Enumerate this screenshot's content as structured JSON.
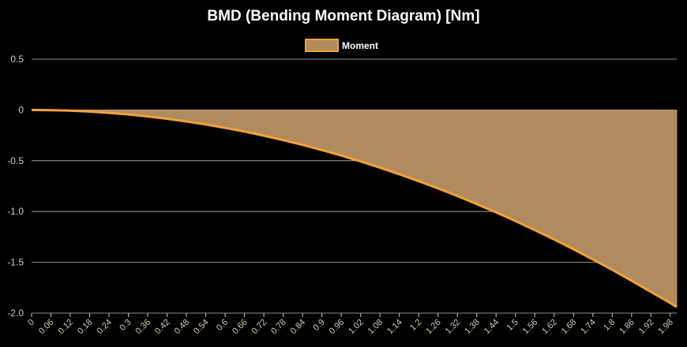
{
  "chart_data": {
    "type": "area",
    "title": "BMD (Bending Moment Diagram) [Nm]",
    "legend": {
      "position": "top",
      "entries": [
        "Moment"
      ]
    },
    "xlabel": "",
    "ylabel": "",
    "ylim": [
      -2.0,
      0.5
    ],
    "yticks": [
      "0.5",
      "0",
      "-0.5",
      "-1.0",
      "-1.5",
      "-2.0"
    ],
    "xlim": [
      0,
      2.0
    ],
    "xticks": [
      "0",
      "0.06",
      "0.12",
      "0.18",
      "0.24",
      "0.3",
      "0.36",
      "0.42",
      "0.48",
      "0.54",
      "0.6",
      "0.66",
      "0.72",
      "0.78",
      "0.84",
      "0.9",
      "0.96",
      "1.02",
      "1.08",
      "1.14",
      "1.2",
      "1.26",
      "1.32",
      "1.38",
      "1.44",
      "1.5",
      "1.56",
      "1.62",
      "1.68",
      "1.74",
      "1.8",
      "1.86",
      "1.92",
      "1.98"
    ],
    "grid": true,
    "colors": {
      "line": "#f5a13a",
      "fill": "#b08b5e",
      "background": "#000000"
    },
    "series": [
      {
        "name": "Moment",
        "x": [
          0,
          0.06,
          0.12,
          0.18,
          0.24,
          0.3,
          0.36,
          0.42,
          0.48,
          0.54,
          0.6,
          0.66,
          0.72,
          0.78,
          0.84,
          0.9,
          0.96,
          1.02,
          1.08,
          1.14,
          1.2,
          1.26,
          1.32,
          1.38,
          1.44,
          1.5,
          1.56,
          1.62,
          1.68,
          1.74,
          1.8,
          1.86,
          1.92,
          1.98,
          2.0
        ],
        "values": [
          0,
          -0.002,
          -0.007,
          -0.016,
          -0.029,
          -0.044,
          -0.064,
          -0.087,
          -0.113,
          -0.143,
          -0.176,
          -0.213,
          -0.253,
          -0.297,
          -0.344,
          -0.395,
          -0.449,
          -0.507,
          -0.568,
          -0.633,
          -0.701,
          -0.772,
          -0.847,
          -0.926,
          -1.008,
          -1.093,
          -1.183,
          -1.275,
          -1.371,
          -1.471,
          -1.574,
          -1.681,
          -1.791,
          -1.9,
          -1.94
        ]
      }
    ]
  }
}
